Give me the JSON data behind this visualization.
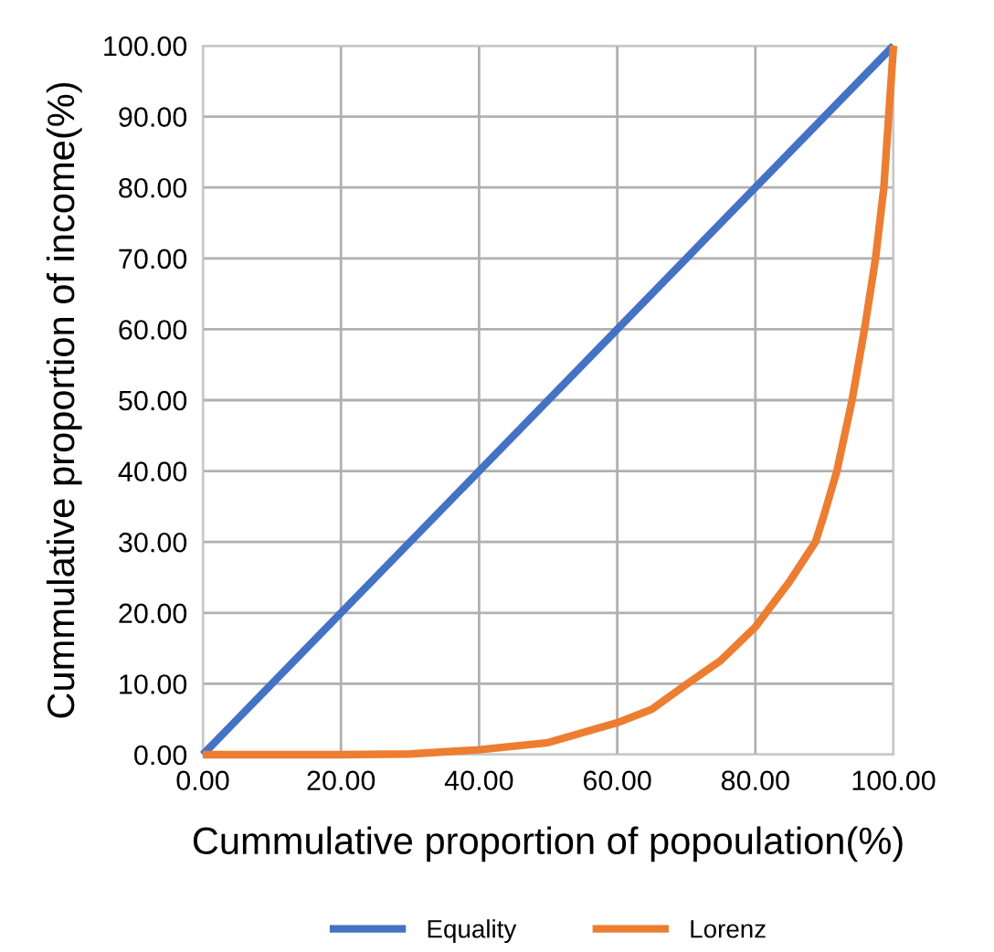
{
  "chart_data": {
    "type": "line",
    "xlabel": "Cummulative proportion of popoulation(%)",
    "ylabel": "Cummulative proportion of income(%)",
    "series": [
      {
        "name": "Equality",
        "color": "#4472c4",
        "x": [
          0,
          100
        ],
        "values": [
          0,
          100
        ]
      },
      {
        "name": "Lorenz",
        "color": "#ed7d31",
        "x": [
          0,
          10,
          20,
          30,
          40,
          50,
          60,
          65,
          70,
          75,
          80,
          85,
          88.7,
          90,
          91.8,
          94,
          95.8,
          97.4,
          98.6,
          99.3,
          100
        ],
        "values": [
          0,
          0,
          0,
          0.1,
          0.7,
          1.7,
          4.5,
          6.4,
          9.9,
          13.3,
          18,
          24.5,
          30,
          34,
          40,
          50,
          60,
          70,
          80,
          90,
          100
        ]
      }
    ],
    "xlim": [
      0,
      100
    ],
    "ylim": [
      0,
      100
    ],
    "xticks": [
      {
        "value": 0,
        "label": "0.00"
      },
      {
        "value": 20,
        "label": "20.00"
      },
      {
        "value": 40,
        "label": "40.00"
      },
      {
        "value": 60,
        "label": "60.00"
      },
      {
        "value": 80,
        "label": "80.00"
      },
      {
        "value": 100,
        "label": "100.00"
      }
    ],
    "yticks": [
      {
        "value": 0,
        "label": "0.00"
      },
      {
        "value": 10,
        "label": "10.00"
      },
      {
        "value": 20,
        "label": "20.00"
      },
      {
        "value": 30,
        "label": "30.00"
      },
      {
        "value": 40,
        "label": "40.00"
      },
      {
        "value": 50,
        "label": "50.00"
      },
      {
        "value": 60,
        "label": "60.00"
      },
      {
        "value": 70,
        "label": "70.00"
      },
      {
        "value": 80,
        "label": "80.00"
      },
      {
        "value": 90,
        "label": "90.00"
      },
      {
        "value": 100,
        "label": "100.00"
      }
    ],
    "grid": true,
    "legend": "bottom",
    "marker": "none",
    "line_style": "solid"
  }
}
